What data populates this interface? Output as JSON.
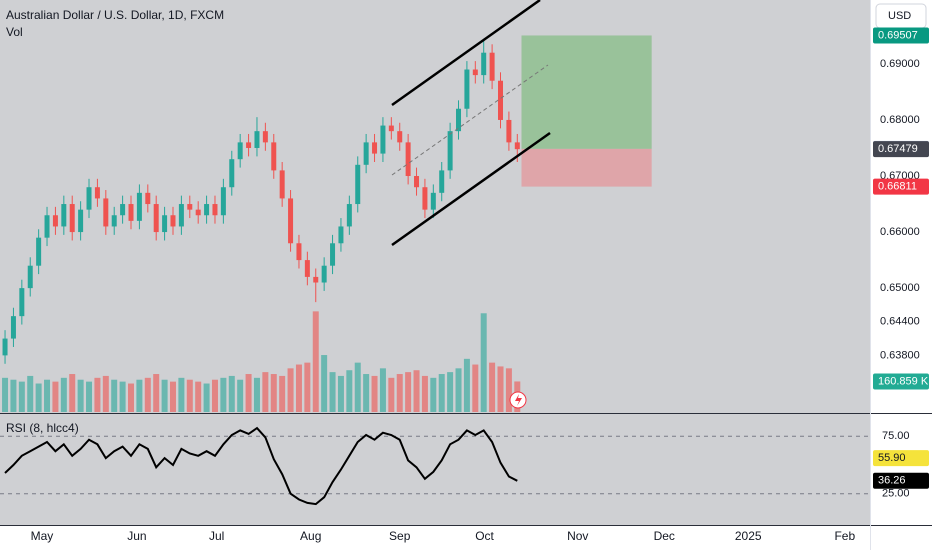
{
  "header": {
    "title": "Australian Dollar / U.S. Dollar, 1D, FXCM",
    "volume_label": "Vol",
    "currency": "USD"
  },
  "chart_data": [
    {
      "type": "candlestick",
      "up_color": "#26a69a",
      "down_color": "#ef5350",
      "open": [
        0.638,
        0.641,
        0.645,
        0.65,
        0.654,
        0.659,
        0.663,
        0.661,
        0.665,
        0.66,
        0.664,
        0.668,
        0.666,
        0.661,
        0.663,
        0.665,
        0.662,
        0.667,
        0.665,
        0.66,
        0.663,
        0.661,
        0.665,
        0.664,
        0.663,
        0.665,
        0.663,
        0.668,
        0.673,
        0.676,
        0.675,
        0.678,
        0.676,
        0.671,
        0.666,
        0.658,
        0.655,
        0.652,
        0.651,
        0.654,
        0.658,
        0.661,
        0.665,
        0.672,
        0.676,
        0.674,
        0.679,
        0.678,
        0.676,
        0.67,
        0.668,
        0.664,
        0.667,
        0.671,
        0.678,
        0.682,
        0.689,
        0.688,
        0.692,
        0.687,
        0.68,
        0.676
      ],
      "high": [
        0.6425,
        0.6465,
        0.6515,
        0.6555,
        0.6605,
        0.6645,
        0.6645,
        0.6665,
        0.6665,
        0.6655,
        0.6695,
        0.6695,
        0.6675,
        0.6645,
        0.6665,
        0.6665,
        0.6685,
        0.6685,
        0.6665,
        0.6645,
        0.6645,
        0.6665,
        0.6665,
        0.6655,
        0.6665,
        0.6665,
        0.6695,
        0.6745,
        0.6775,
        0.6775,
        0.6805,
        0.6795,
        0.6775,
        0.6725,
        0.6675,
        0.6595,
        0.6565,
        0.6535,
        0.6555,
        0.6595,
        0.6625,
        0.6665,
        0.6735,
        0.6775,
        0.6775,
        0.6805,
        0.6805,
        0.6795,
        0.6775,
        0.6715,
        0.6695,
        0.6685,
        0.6725,
        0.6795,
        0.6835,
        0.6905,
        0.6905,
        0.6945,
        0.6935,
        0.6885,
        0.6815,
        0.6775
      ],
      "low": [
        0.6365,
        0.6395,
        0.6435,
        0.6485,
        0.6525,
        0.6575,
        0.6595,
        0.6595,
        0.6585,
        0.6585,
        0.6625,
        0.6645,
        0.6595,
        0.6595,
        0.6615,
        0.6605,
        0.6605,
        0.6635,
        0.6585,
        0.6585,
        0.6595,
        0.6595,
        0.6625,
        0.6615,
        0.6615,
        0.6615,
        0.6615,
        0.6665,
        0.6715,
        0.6735,
        0.6735,
        0.6745,
        0.6695,
        0.6645,
        0.6565,
        0.6535,
        0.6505,
        0.6475,
        0.6495,
        0.6525,
        0.6565,
        0.6595,
        0.6635,
        0.6705,
        0.6725,
        0.6725,
        0.6765,
        0.6745,
        0.6685,
        0.6665,
        0.6625,
        0.6625,
        0.6655,
        0.6695,
        0.6765,
        0.6805,
        0.6865,
        0.6865,
        0.6855,
        0.6785,
        0.6745,
        0.6725
      ],
      "close": [
        0.641,
        0.645,
        0.65,
        0.654,
        0.659,
        0.663,
        0.661,
        0.665,
        0.66,
        0.664,
        0.668,
        0.666,
        0.661,
        0.663,
        0.665,
        0.662,
        0.667,
        0.665,
        0.66,
        0.663,
        0.661,
        0.665,
        0.664,
        0.663,
        0.665,
        0.663,
        0.668,
        0.673,
        0.676,
        0.675,
        0.678,
        0.676,
        0.671,
        0.666,
        0.658,
        0.655,
        0.652,
        0.651,
        0.654,
        0.658,
        0.661,
        0.665,
        0.672,
        0.676,
        0.674,
        0.679,
        0.678,
        0.676,
        0.67,
        0.668,
        0.664,
        0.667,
        0.671,
        0.678,
        0.682,
        0.689,
        0.688,
        0.692,
        0.687,
        0.68,
        0.676,
        0.67479
      ],
      "xlim": [
        -0.6,
        103
      ],
      "xticks": [
        {
          "value": 4.4,
          "label": "May"
        },
        {
          "value": 15.7,
          "label": "Jun"
        },
        {
          "value": 25.2,
          "label": "Jul"
        },
        {
          "value": 36.4,
          "label": "Aug"
        },
        {
          "value": 47,
          "label": "Sep"
        },
        {
          "value": 57.1,
          "label": "Oct"
        },
        {
          "value": 68.2,
          "label": "Nov"
        },
        {
          "value": 78.5,
          "label": "Dec"
        },
        {
          "value": 88.5,
          "label": "2025"
        },
        {
          "value": 100,
          "label": "Feb"
        }
      ],
      "ylim": [
        0.6279,
        0.7014
      ],
      "yticks": [
        {
          "value": 0.69,
          "label": "0.69000"
        },
        {
          "value": 0.68,
          "label": "0.68000"
        },
        {
          "value": 0.67,
          "label": "0.67000"
        },
        {
          "value": 0.66,
          "label": "0.66000"
        },
        {
          "value": 0.65,
          "label": "0.65000"
        },
        {
          "value": 0.644,
          "label": "0.64400"
        },
        {
          "value": 0.638,
          "label": "0.63800"
        }
      ],
      "position": {
        "target": 0.69507,
        "entry": 0.67484,
        "stop": 0.66811
      }
    },
    {
      "type": "volume",
      "values": [
        180,
        170,
        160,
        190,
        150,
        170,
        160,
        180,
        200,
        170,
        160,
        180,
        190,
        170,
        160,
        150,
        170,
        180,
        200,
        170,
        160,
        180,
        170,
        160,
        150,
        170,
        180,
        190,
        170,
        200,
        180,
        210,
        200,
        190,
        230,
        250,
        260,
        530,
        300,
        210,
        190,
        220,
        260,
        200,
        190,
        230,
        180,
        200,
        210,
        220,
        190,
        180,
        200,
        210,
        230,
        280,
        250,
        520,
        260,
        240,
        230,
        160.859
      ],
      "ylim": [
        0,
        2170
      ],
      "tag": {
        "value": 160.859,
        "label": "160.859 K"
      }
    },
    {
      "type": "line",
      "title": "RSI (8, hlcc4)",
      "color": "#000000",
      "values": [
        43,
        50,
        58,
        62,
        66,
        70,
        62,
        68,
        58,
        64,
        72,
        68,
        56,
        62,
        66,
        58,
        68,
        64,
        48,
        56,
        50,
        64,
        60,
        58,
        62,
        58,
        68,
        76,
        80,
        77,
        82,
        74,
        55,
        42,
        25,
        20,
        17,
        16,
        22,
        35,
        46,
        58,
        70,
        76,
        72,
        78,
        76,
        72,
        54,
        48,
        38,
        44,
        54,
        68,
        72,
        80,
        76,
        80,
        70,
        52,
        40,
        36.26
      ],
      "ylim": [
        -2.2,
        94.3
      ],
      "yticks": [
        {
          "value": 75,
          "label": "75.00"
        },
        {
          "value": 25,
          "label": "25.00"
        }
      ],
      "ma": {
        "value": 55.9,
        "label": "55.90"
      }
    }
  ]
}
